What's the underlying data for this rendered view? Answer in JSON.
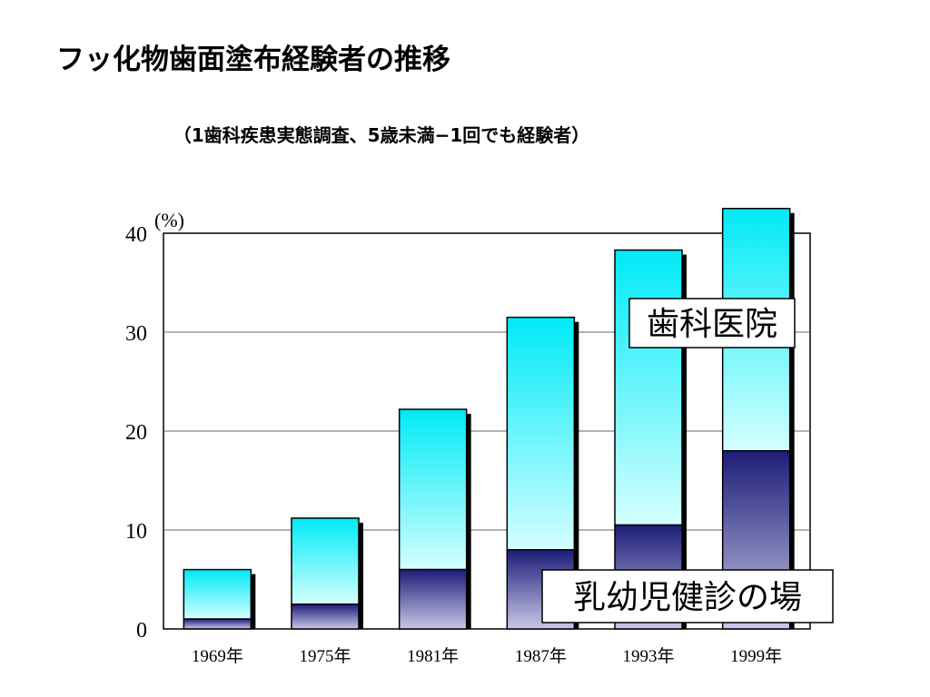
{
  "page": {
    "title": "フッ化物歯面塗布経験者の推移",
    "subtitle": "（1歯科疾患実態調査、5歳未満−1回でも経験者）"
  },
  "chart_data": {
    "type": "bar",
    "stacked": true,
    "categories": [
      "1969年",
      "1975年",
      "1981年",
      "1987年",
      "1993年",
      "1999年"
    ],
    "series": [
      {
        "name": "乳幼児健診の場",
        "values": [
          1.0,
          2.5,
          6.0,
          8.0,
          10.5,
          18.0
        ],
        "color": "#1c1c78"
      },
      {
        "name": "歯科医院",
        "values": [
          5.0,
          8.7,
          16.2,
          23.5,
          27.8,
          24.5
        ],
        "color": "#00e0ee"
      }
    ],
    "y_unit": "(%)",
    "ylim": [
      0,
      40
    ],
    "yticks": [
      0,
      10,
      20,
      30,
      40
    ],
    "grid": true,
    "labels_inside_chart": true
  }
}
